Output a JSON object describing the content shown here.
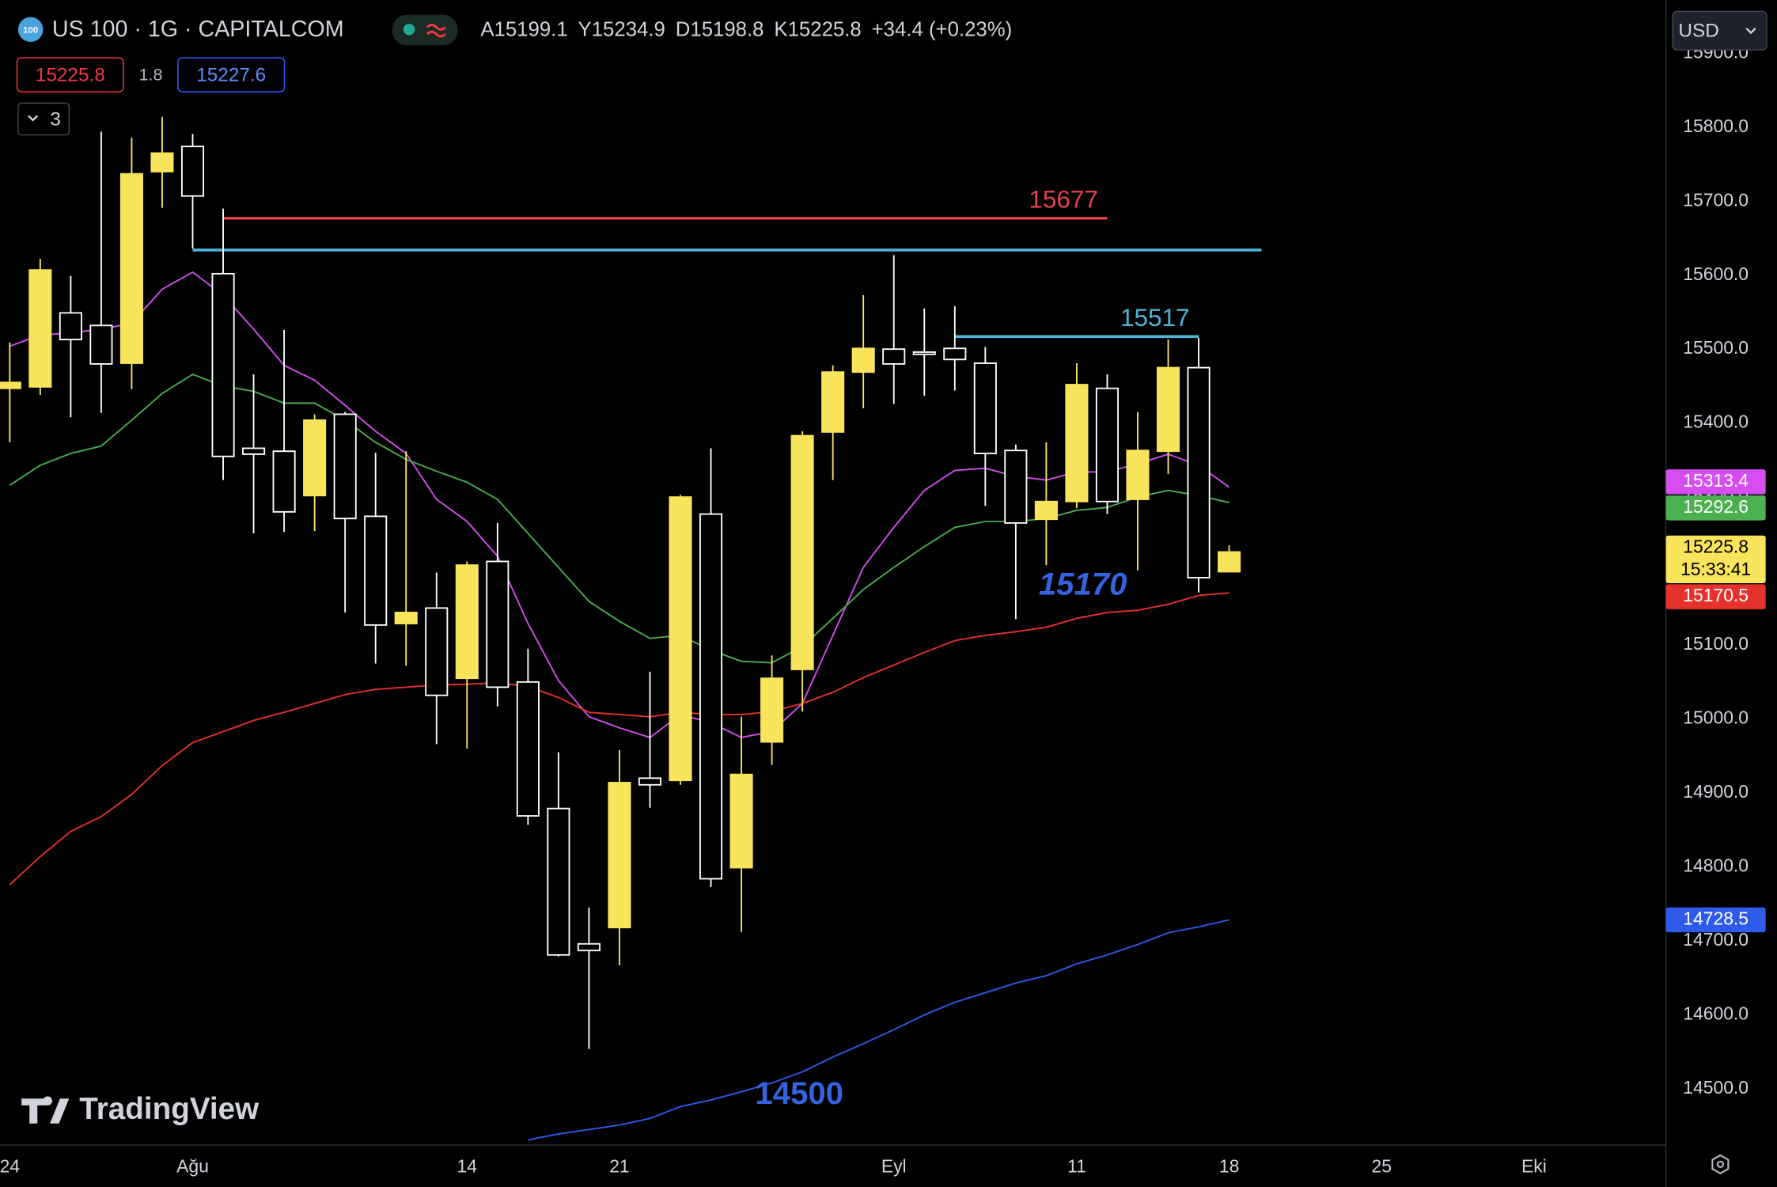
{
  "header": {
    "badge": "100",
    "symbol": "US 100 · 1G · CAPITALCOM",
    "ohlc": [
      {
        "key": "A",
        "value": "15199.1"
      },
      {
        "key": "Y",
        "value": "15234.9"
      },
      {
        "key": "D",
        "value": "15198.8"
      },
      {
        "key": "K",
        "value": "15225.8"
      }
    ],
    "change": "+34.4 (+0.23%)",
    "bid": "15225.8",
    "spread": "1.8",
    "ask": "15227.6",
    "indicators_count": "3",
    "currency": "USD",
    "brand": "TradingView"
  },
  "chart_data": {
    "type": "candlestick",
    "categories": [
      "24",
      null,
      null,
      null,
      null,
      null,
      "Ağu",
      null,
      null,
      null,
      null,
      null,
      null,
      null,
      null,
      "14",
      null,
      null,
      null,
      null,
      "21",
      null,
      null,
      null,
      null,
      null,
      null,
      null,
      null,
      "Eyl",
      null,
      null,
      null,
      null,
      null,
      "11",
      null,
      null,
      null,
      null,
      "18",
      null,
      null,
      null,
      null,
      "25",
      null,
      null,
      null,
      null,
      "Eki"
    ],
    "open": [
      15447,
      15449,
      15549,
      15532,
      15481,
      15740,
      15774,
      15602,
      15366,
      15362,
      15302,
      15412,
      15274,
      15129,
      15150,
      15055,
      15213,
      15050,
      14879,
      14696,
      14718,
      14920,
      14917,
      15277,
      14799,
      14969,
      15067,
      15388,
      15469,
      15500,
      15496,
      15501,
      15481,
      15363,
      15270,
      15294,
      15447,
      15297,
      15362,
      15475,
      15199.1,
      null,
      null,
      null,
      null,
      null,
      null,
      null,
      null,
      null,
      null
    ],
    "high": [
      15509,
      15622,
      15599,
      15794,
      15786,
      15814,
      15791,
      15690,
      15466,
      15526,
      15412,
      15415,
      15360,
      15362,
      15198,
      15213,
      15265,
      15095,
      14955,
      14745,
      14958,
      15064,
      15303,
      15366,
      15003,
      15086,
      15389,
      15478,
      15573,
      15627,
      15555,
      15558,
      15503,
      15371,
      15374,
      15481,
      15466,
      15415,
      15513,
      15515,
      15234.9,
      null,
      null,
      null,
      null,
      null,
      null,
      null,
      null,
      null,
      null
    ],
    "low": [
      15374,
      15438,
      15408,
      15414,
      15446,
      15691,
      15636,
      15323,
      15251,
      15253,
      15254,
      15144,
      15075,
      15072,
      14966,
      14960,
      15017,
      14857,
      14679,
      14554,
      14667,
      14880,
      14911,
      14773,
      14712,
      14938,
      15010,
      15323,
      15420,
      15426,
      15437,
      15444,
      15288,
      15135,
      15208,
      15285,
      15277,
      15201,
      15331,
      15171,
      15198.8,
      null,
      null,
      null,
      null,
      null,
      null,
      null,
      null,
      null,
      null
    ],
    "close": [
      15455,
      15607,
      15513,
      15480,
      15737,
      15765,
      15707,
      15355,
      15358,
      15280,
      15404,
      15271,
      15127,
      15144,
      15032,
      15208,
      15043,
      14869,
      14681,
      14687,
      14914,
      14911,
      15300,
      14784,
      14925,
      15055,
      15383,
      15469,
      15501,
      15480,
      15493,
      15486,
      15359,
      15265,
      15294,
      15452,
      15294,
      15363,
      15475,
      15191,
      15225.8,
      null,
      null,
      null,
      null,
      null,
      null,
      null,
      null,
      null,
      null
    ],
    "up_color": "#f9e45b",
    "down_color": "#000000",
    "down_border": "#ffffff",
    "countdown": "15:33:41",
    "series": [
      {
        "color": "#d44ef0",
        "values": [
          15504,
          15519,
          15522,
          15527,
          15535,
          15581,
          15604,
          15573,
          15527,
          15478,
          15458,
          15424,
          15389,
          15359,
          15297,
          15267,
          15220,
          15129,
          15052,
          15003,
          14988,
          14975,
          15006,
          14995,
          14975,
          14983,
          15021,
          15113,
          15205,
          15259,
          15309,
          15336,
          15339,
          15328,
          15323,
          15334,
          15334,
          15345,
          15358,
          15343,
          15313.4,
          null,
          null,
          null,
          null,
          null,
          null,
          null,
          null,
          null,
          null
        ]
      },
      {
        "color": "#4caf50",
        "values": [
          15316,
          15343,
          15359,
          15369,
          15404,
          15440,
          15466,
          15450,
          15443,
          15427,
          15427,
          15404,
          15374,
          15351,
          15335,
          15320,
          15297,
          15251,
          15205,
          15159,
          15132,
          15109,
          15113,
          15093,
          15078,
          15076,
          15098,
          15136,
          15175,
          15205,
          15233,
          15259,
          15267,
          15267,
          15271,
          15282,
          15286,
          15300,
          15309,
          15302,
          15292.6,
          null,
          null,
          null,
          null,
          null,
          null,
          null,
          null,
          null,
          null
        ]
      },
      {
        "color": "#e5322d",
        "values": [
          14776,
          14814,
          14848,
          14868,
          14898,
          14937,
          14968,
          14983,
          14998,
          15009,
          15021,
          15033,
          15040,
          15043,
          15046,
          15047,
          15049,
          15044,
          15029,
          15009,
          15006,
          15003,
          15009,
          15006,
          15006,
          15010,
          15021,
          15036,
          15056,
          15073,
          15090,
          15106,
          15113,
          15118,
          15124,
          15136,
          15144,
          15147,
          15155,
          15167,
          15170.5,
          null,
          null,
          null,
          null,
          null,
          null,
          null,
          null,
          null,
          null
        ]
      },
      {
        "color": "#2f5bea",
        "values": [
          null,
          null,
          null,
          null,
          null,
          null,
          null,
          null,
          null,
          null,
          null,
          null,
          null,
          null,
          null,
          null,
          null,
          14431,
          14439,
          14445,
          14451,
          14460,
          14476,
          14485,
          14496,
          14508,
          14523,
          14543,
          14561,
          14580,
          14600,
          14617,
          14630,
          14643,
          14653,
          14669,
          14681,
          14695,
          14711,
          14719,
          14728.5,
          null,
          null,
          null,
          null,
          null,
          null,
          null,
          null,
          null,
          null
        ]
      }
    ],
    "levels": [
      {
        "value": 15677,
        "color": "#e0434c",
        "labeled": true
      },
      {
        "value": 15634,
        "color": "#4fb3d9",
        "labeled": false
      },
      {
        "value": 15517,
        "color": "#4fb3d9",
        "labeled": true
      }
    ],
    "annotations": [
      {
        "text": "15170",
        "color": "#3563e0"
      },
      {
        "text": "14500",
        "color": "#3563e0"
      }
    ],
    "ylim": [
      14424,
      15972
    ],
    "yticks": [
      {
        "value": 14500,
        "label": "14500.0"
      },
      {
        "value": 14600,
        "label": "14600.0"
      },
      {
        "value": 14700,
        "label": "14700.0"
      },
      {
        "value": 14800,
        "label": "14800.0"
      },
      {
        "value": 14900,
        "label": "14900.0"
      },
      {
        "value": 15000,
        "label": "15000.0"
      },
      {
        "value": 15100,
        "label": "15100.0"
      },
      {
        "value": 15200,
        "label": "15200.0"
      },
      {
        "value": 15300,
        "label": "15300.0"
      },
      {
        "value": 15400,
        "label": "15400.0"
      },
      {
        "value": 15500,
        "label": "15500.0"
      },
      {
        "value": 15600,
        "label": "15600.0"
      },
      {
        "value": 15700,
        "label": "15700.0"
      },
      {
        "value": 15800,
        "label": "15800.0"
      },
      {
        "value": 15900,
        "label": "15900.0"
      }
    ],
    "grid": false
  }
}
